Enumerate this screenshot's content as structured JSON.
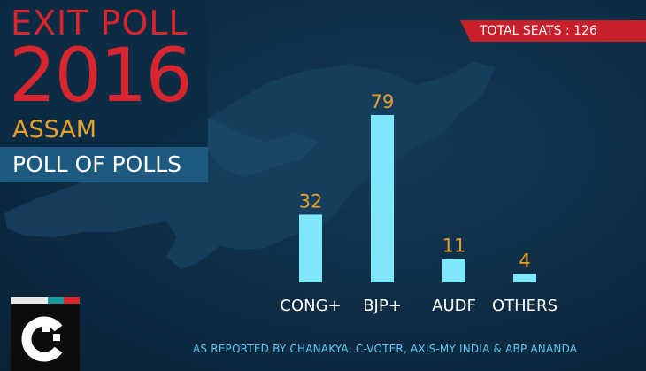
{
  "header": {
    "line1": "EXIT POLL",
    "year": "2016",
    "state": "ASSAM",
    "subtitle": "POLL OF POLLS"
  },
  "badge": {
    "total_seats": "TOTAL SEATS : 126"
  },
  "footer": {
    "source": "AS REPORTED BY CHANAKYA, C-VOTER, AXIS-MY INDIA  & ABP ANANDA"
  },
  "colors": {
    "background": "#0e2c44",
    "accent_red": "#d7262e",
    "accent_gold": "#e5a02a",
    "bar": "#7ee8fa",
    "source_text": "#5ec8f2"
  },
  "logo": {
    "icon": "c-logo-icon"
  },
  "chart_data": {
    "type": "bar",
    "categories": [
      "CONG+",
      "BJP+",
      "AUDF",
      "OTHERS"
    ],
    "values": [
      32,
      79,
      11,
      4
    ],
    "data_labels": [
      "32",
      "79",
      "11",
      "4"
    ],
    "ylim": [
      0,
      126
    ],
    "grid": false,
    "legend": "none"
  }
}
